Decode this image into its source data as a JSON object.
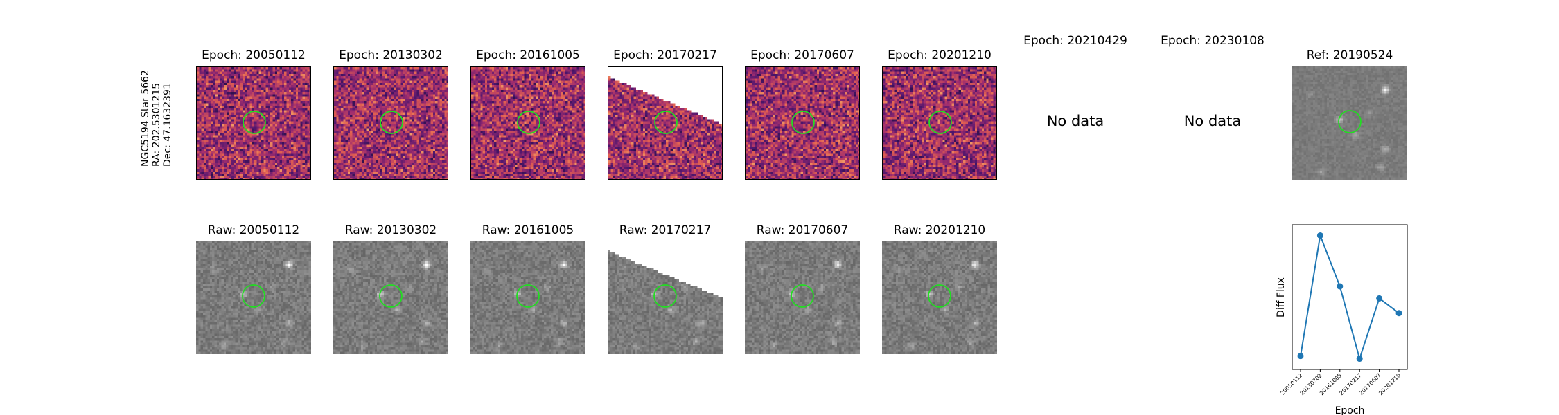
{
  "star_label": {
    "line1": "NGC5194 Star 5662",
    "line2": "RA: 202.5301215",
    "line3": "Dec: 47.1632391"
  },
  "diff_row": [
    {
      "title": "Epoch: 20050112",
      "has_data": true,
      "seed": 11
    },
    {
      "title": "Epoch: 20130302",
      "has_data": true,
      "seed": 23
    },
    {
      "title": "Epoch: 20161005",
      "has_data": true,
      "seed": 37
    },
    {
      "title": "Epoch: 20170217",
      "has_data": true,
      "seed": 41,
      "masked": true
    },
    {
      "title": "Epoch: 20170607",
      "has_data": true,
      "seed": 53
    },
    {
      "title": "Epoch: 20201210",
      "has_data": true,
      "seed": 67
    },
    {
      "title": "Epoch: 20210429",
      "has_data": false,
      "nodata_text": "No data"
    },
    {
      "title": "Epoch: 20230108",
      "has_data": false,
      "nodata_text": "No data"
    }
  ],
  "ref_panel": {
    "title": "Ref: 20190524"
  },
  "raw_row": [
    {
      "title": "Raw: 20050112",
      "seed": 101
    },
    {
      "title": "Raw: 20130302",
      "seed": 113
    },
    {
      "title": "Raw: 20161005",
      "seed": 127
    },
    {
      "title": "Raw: 20170217",
      "seed": 131,
      "masked": true
    },
    {
      "title": "Raw: 20170607",
      "seed": 139
    },
    {
      "title": "Raw: 20201210",
      "seed": 149
    }
  ],
  "colors": {
    "aperture": "#22dd22",
    "series": "#1f77b4"
  },
  "chart_data": {
    "type": "line",
    "xlabel": "Epoch",
    "ylabel": "Diff Flux",
    "categories": [
      "20050112",
      "20130302",
      "20161005",
      "20170217",
      "20170607",
      "20201210"
    ],
    "series": [
      {
        "values": [
          0.1,
          1.0,
          0.62,
          0.08,
          0.53,
          0.42
        ]
      }
    ],
    "ylim": [
      0.0,
      1.08
    ],
    "yticks_shown": false,
    "grid": false
  }
}
